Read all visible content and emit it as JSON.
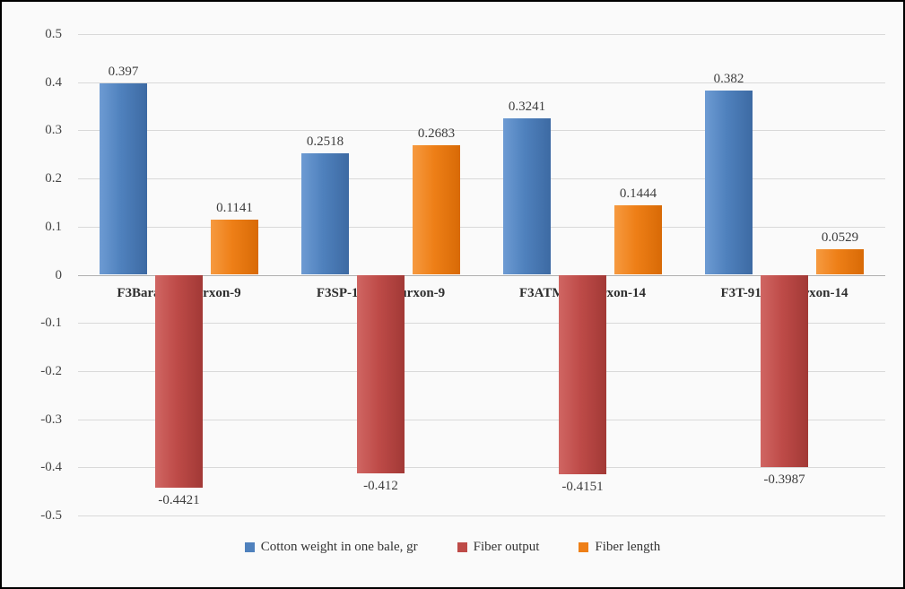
{
  "chart_data": {
    "type": "bar",
    "title": "",
    "xlabel": "",
    "ylabel": "",
    "categories": [
      "F3Baraka x Surxon-9",
      "F3SP-1303 x Surxon-9",
      "F3ATM-1 xSurxon-14",
      "F3T-9121 x Surxon-14"
    ],
    "series": [
      {
        "name": "Cotton weight in one bale, gr",
        "color": "#4f81bd",
        "color_light": "#6d9bd3",
        "color_dark": "#3d6aa3",
        "values": [
          0.397,
          0.2518,
          0.3241,
          0.382
        ],
        "labels": [
          "0.397",
          "0.2518",
          "0.3241",
          "0.382"
        ]
      },
      {
        "name": "Fiber output",
        "color": "#be4b48",
        "color_light": "#d06663",
        "color_dark": "#a23936",
        "values": [
          -0.4421,
          -0.412,
          -0.4151,
          -0.3987
        ],
        "labels": [
          "-0.4421",
          "-0.412",
          "-0.4151",
          "-0.3987"
        ]
      },
      {
        "name": "Fiber length",
        "color": "#ee7f17",
        "color_light": "#f69a40",
        "color_dark": "#d86a06",
        "values": [
          0.1141,
          0.2683,
          0.1444,
          0.0529
        ],
        "labels": [
          "0.1141",
          "0.2683",
          "0.1444",
          "0.0529"
        ]
      }
    ],
    "ylim": [
      -0.5,
      0.5
    ],
    "ytick_step": 0.1,
    "ytick_labels": [
      "0.5",
      "0.4",
      "0.3",
      "0.2",
      "0.1",
      "0",
      "-0.1",
      "-0.2",
      "-0.3",
      "-0.4",
      "-0.5"
    ],
    "grid": true,
    "legend_position": "bottom"
  }
}
